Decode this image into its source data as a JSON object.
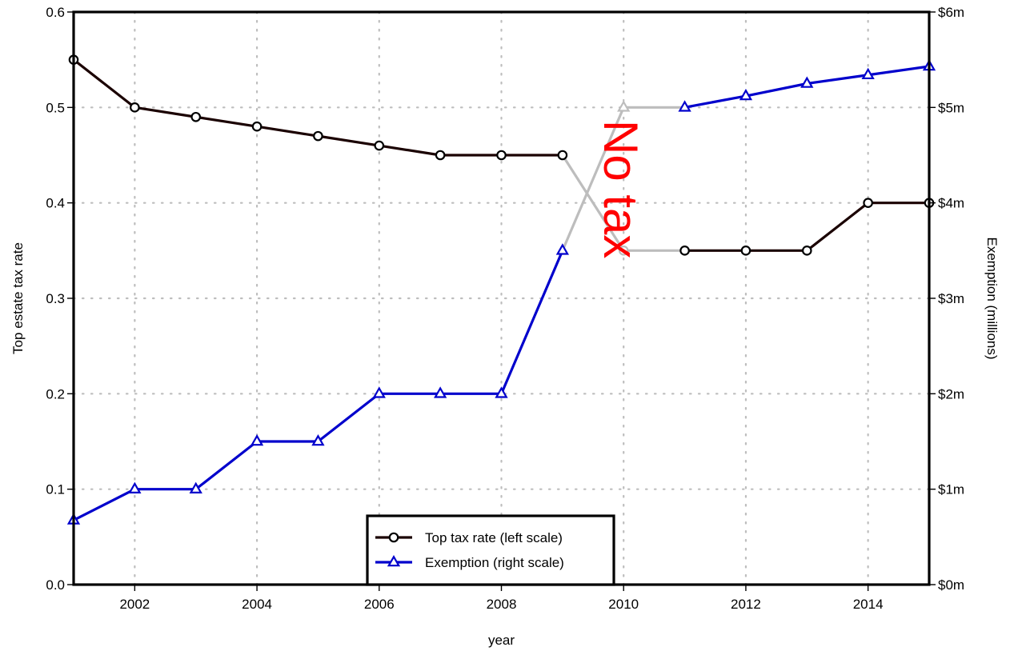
{
  "chart_data": {
    "type": "line",
    "x": [
      2001,
      2002,
      2003,
      2004,
      2005,
      2006,
      2007,
      2008,
      2009,
      2010,
      2011,
      2012,
      2013,
      2014,
      2015
    ],
    "xlabel": "year",
    "ylabel": "Top estate tax rate",
    "ylabel_right": "Exemption (millions)",
    "xlim": [
      2001,
      2015
    ],
    "ylim": [
      0,
      0.6
    ],
    "ylim_right": [
      0,
      6
    ],
    "x_ticks": [
      "2002",
      "2004",
      "2006",
      "2008",
      "2010",
      "2012",
      "2014"
    ],
    "y_ticks": [
      "0.0",
      "0.1",
      "0.2",
      "0.3",
      "0.4",
      "0.5",
      "0.6"
    ],
    "y_right_ticks": [
      "$0m",
      "$1m",
      "$2m",
      "$3m",
      "$4m",
      "$5m",
      "$6m"
    ],
    "grid": true,
    "series": [
      {
        "name": "Top tax rate  (left scale)",
        "axis": "left",
        "color": "#1a0000",
        "marker": "circle",
        "values": [
          0.55,
          0.5,
          0.49,
          0.48,
          0.47,
          0.46,
          0.45,
          0.45,
          0.45,
          0.35,
          0.35,
          0.35,
          0.35,
          0.4,
          0.4
        ]
      },
      {
        "name": "Exemption (right scale)",
        "axis": "right",
        "color": "#0000cc",
        "marker": "triangle",
        "values": [
          0.675,
          1.0,
          1.0,
          1.5,
          1.5,
          2.0,
          2.0,
          2.0,
          3.5,
          5.0,
          5.0,
          5.12,
          5.25,
          5.34,
          5.43
        ]
      }
    ],
    "gap_year": 2010,
    "gap_color": "#bdbdbd",
    "annotation": {
      "text": "No tax",
      "color": "#ff0000"
    },
    "legend_position": "bottom-center"
  }
}
